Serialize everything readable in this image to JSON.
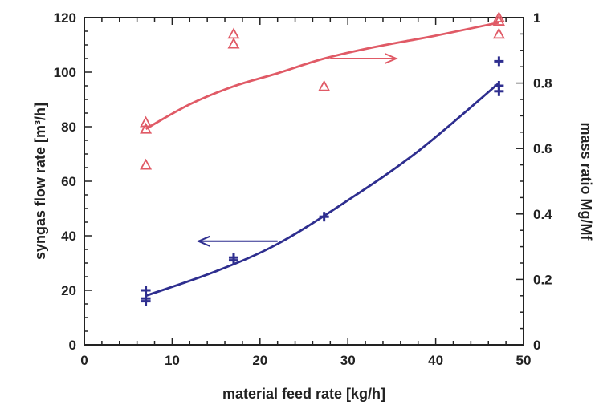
{
  "chart_data": {
    "type": "scatter",
    "title": "",
    "xlabel": "material feed rate [kg/h]",
    "ylabel_left": "syngas flow rate [m³/h]",
    "ylabel_right": "mass ratio Mg/Mf",
    "xlim": [
      0,
      50
    ],
    "ylim_left": [
      0,
      120
    ],
    "ylim_right": [
      0,
      1
    ],
    "x_ticks": [
      "0",
      "10",
      "20",
      "30",
      "40",
      "50"
    ],
    "y_left_ticks": [
      "0",
      "20",
      "40",
      "60",
      "80",
      "100",
      "120"
    ],
    "y_right_ticks": [
      "0",
      "0.2",
      "0.4",
      "0.6",
      "0.8",
      "1"
    ],
    "grid": false,
    "series": [
      {
        "axis": "left",
        "color": "#2e2e8f",
        "marker": "plus",
        "points": [
          [
            7,
            16
          ],
          [
            7,
            17
          ],
          [
            7,
            20
          ],
          [
            17,
            31
          ],
          [
            17,
            32
          ],
          [
            27.3,
            47
          ],
          [
            47.2,
            93
          ],
          [
            47.2,
            95
          ],
          [
            47.2,
            104
          ]
        ],
        "fit": [
          [
            7,
            18
          ],
          [
            15,
            27
          ],
          [
            22,
            37
          ],
          [
            30,
            53
          ],
          [
            38,
            71
          ],
          [
            47.2,
            96
          ]
        ],
        "arrow": {
          "from": [
            22,
            38
          ],
          "to": [
            13,
            38
          ]
        }
      },
      {
        "axis": "right",
        "color": "#e05a66",
        "marker": "triangle",
        "points": [
          [
            7,
            0.55
          ],
          [
            7,
            0.66
          ],
          [
            7,
            0.68
          ],
          [
            17,
            0.92
          ],
          [
            17,
            0.95
          ],
          [
            27.3,
            0.79
          ],
          [
            47.2,
            0.95
          ],
          [
            47.2,
            0.99
          ],
          [
            47.2,
            1.0
          ]
        ],
        "fit": [
          [
            7,
            0.66
          ],
          [
            12,
            0.735
          ],
          [
            17,
            0.79
          ],
          [
            22,
            0.83
          ],
          [
            27.3,
            0.875
          ],
          [
            33,
            0.91
          ],
          [
            40,
            0.945
          ],
          [
            47.2,
            0.985
          ]
        ],
        "arrow": {
          "from": [
            28,
            0.875
          ],
          "to": [
            35.5,
            0.875
          ]
        }
      }
    ]
  }
}
